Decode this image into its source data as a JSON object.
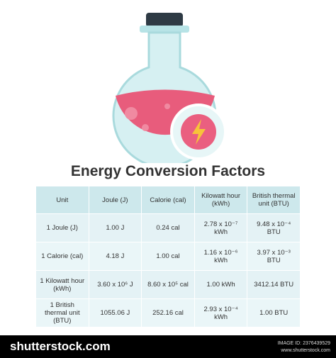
{
  "title": "Energy Conversion Factors",
  "table": {
    "header": [
      "Unit",
      "Joule (J)",
      "Calorie (cal)",
      "Kilowatt hour (kWh)",
      "British thermal unit (BTU)"
    ],
    "rows": [
      [
        "1 Joule (J)",
        "1.00 J",
        "0.24 cal",
        "2.78 x 10⁻⁷ kWh",
        "9.48 x 10⁻⁴ BTU"
      ],
      [
        "1 Calorie (cal)",
        "4.18 J",
        "1.00 cal",
        "1.16 x 10⁻⁶ kWh",
        "3.97 x 10⁻³ BTU"
      ],
      [
        "1 Kilowatt hour (kWh)",
        "3.60 x 10⁶ J",
        "8.60 x 10⁵ cal",
        "1.00 kWh",
        "3412.14 BTU"
      ],
      [
        "1 British thermal unit (BTU)",
        "1055.06 J",
        "252.16 cal",
        "2.93 x 10⁻⁴ kWh",
        "1.00 BTU"
      ]
    ]
  },
  "footer": {
    "brand": "shutterstock.com",
    "image_id": "IMAGE ID: 2376439529",
    "site": "www.shutterstock.com"
  }
}
